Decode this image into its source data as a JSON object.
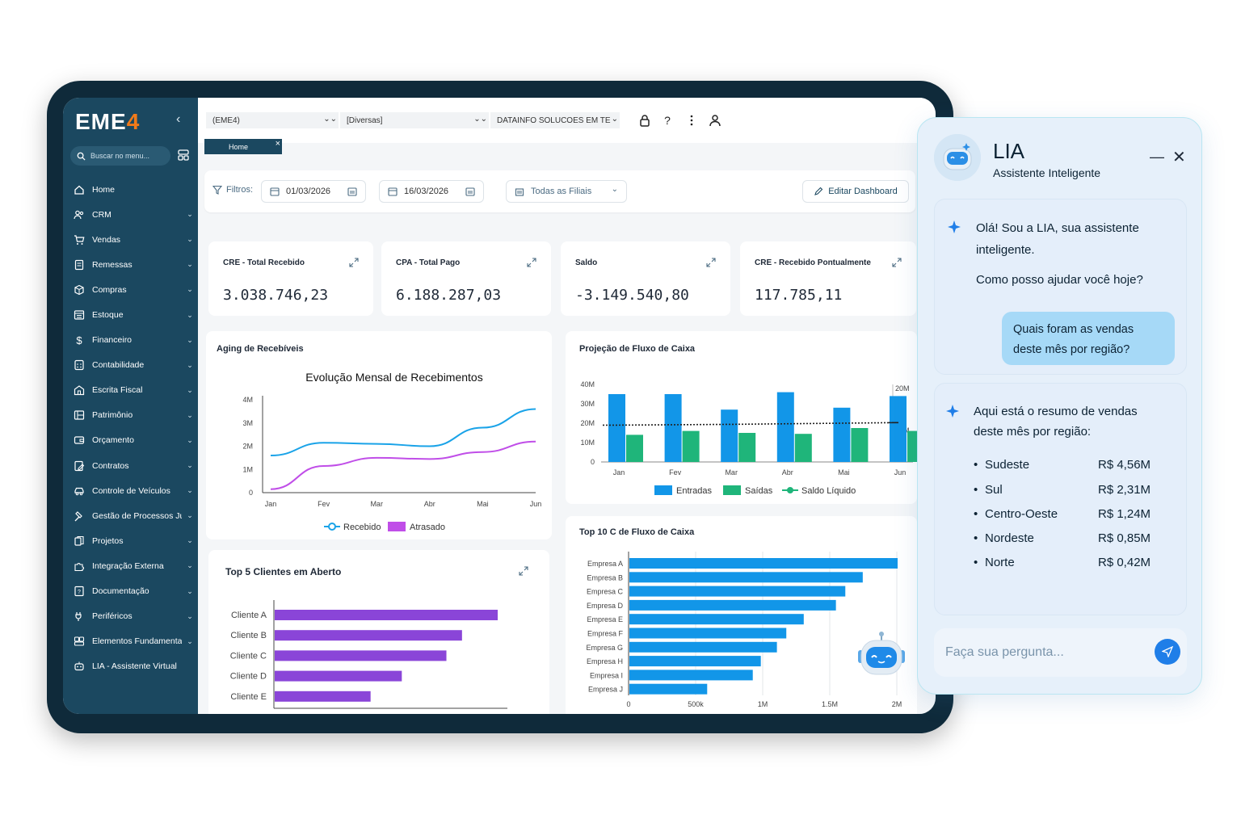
{
  "app": {
    "logo_main": "EME",
    "logo_accent": "4"
  },
  "sidebar": {
    "search_placeholder": "Buscar no menu...",
    "items": [
      {
        "label": "Home",
        "icon": "home-icon",
        "has_children": false
      },
      {
        "label": "CRM",
        "icon": "users-icon",
        "has_children": true
      },
      {
        "label": "Vendas",
        "icon": "cart-icon",
        "has_children": true
      },
      {
        "label": "Remessas",
        "icon": "document-icon",
        "has_children": true
      },
      {
        "label": "Compras",
        "icon": "box-icon",
        "has_children": true
      },
      {
        "label": "Estoque",
        "icon": "warehouse-icon",
        "has_children": true
      },
      {
        "label": "Financeiro",
        "icon": "dollar-icon",
        "has_children": true
      },
      {
        "label": "Contabilidade",
        "icon": "calculator-icon",
        "has_children": true
      },
      {
        "label": "Escrita Fiscal",
        "icon": "building-icon",
        "has_children": true
      },
      {
        "label": "Patrimônio",
        "icon": "assets-icon",
        "has_children": true
      },
      {
        "label": "Orçamento",
        "icon": "wallet-icon",
        "has_children": true
      },
      {
        "label": "Contratos",
        "icon": "contract-icon",
        "has_children": true
      },
      {
        "label": "Controle de Veículos",
        "icon": "car-icon",
        "has_children": true
      },
      {
        "label": "Gestão de Processos Ju...",
        "icon": "gavel-icon",
        "has_children": true
      },
      {
        "label": "Projetos",
        "icon": "projects-icon",
        "has_children": true
      },
      {
        "label": "Integração Externa",
        "icon": "puzzle-icon",
        "has_children": true
      },
      {
        "label": "Documentação",
        "icon": "docs-icon",
        "has_children": true
      },
      {
        "label": "Periféricos",
        "icon": "plug-icon",
        "has_children": true
      },
      {
        "label": "Elementos Fundamentais",
        "icon": "elements-icon",
        "has_children": true
      },
      {
        "label": "LIA - Assistente Virtual",
        "icon": "robot-icon",
        "has_children": false
      }
    ]
  },
  "topbar": {
    "company_select": "(EME4)",
    "group_select": "[Diversas]",
    "branch_select": "DATAINFO SOLUCOES EM TE",
    "tab_label": "Home",
    "tab_close": "×"
  },
  "filters": {
    "label": "Filtros:",
    "date_start": "01/03/2026",
    "date_end": "16/03/2026",
    "branch": "Todas as Filiais",
    "edit_button": "Editar Dashboard"
  },
  "kpis": [
    {
      "title": "CRE - Total Recebido",
      "value": "3.038.746,23"
    },
    {
      "title": "CPA - Total Pago",
      "value": "6.188.287,03"
    },
    {
      "title": "Saldo",
      "value": "-3.149.540,80"
    },
    {
      "title": "CRE - Recebido Pontualmente",
      "value": "117.785,11"
    }
  ],
  "cards": {
    "aging_title": "Aging de Recebíveis",
    "cashflow_title": "Projeção de Fluxo de Caixa",
    "top5_title": "Top 5 Clientes em Aberto",
    "top10_title": "Top 10 C de Fluxo de Caixa"
  },
  "colors": {
    "sidebar": "#1b4860",
    "accent": "#f07a1a",
    "recebido": "#1aa3e8",
    "atrasado": "#c04ee8",
    "entradas": "#1296e8",
    "saidas": "#1fb57a",
    "clientes": "#8a45d8",
    "empresas": "#1296e8"
  },
  "chart_data": [
    {
      "type": "line",
      "title": "Evolução Mensal de Recebimentos",
      "categories": [
        "Jan",
        "Fev",
        "Mar",
        "Abr",
        "Mai",
        "Jun"
      ],
      "ylim": [
        0,
        4000000
      ],
      "yticks": [
        "0",
        "1M",
        "2M",
        "3M",
        "4M"
      ],
      "series": [
        {
          "name": "Recebido",
          "values": [
            1600000,
            2150000,
            2100000,
            2000000,
            2800000,
            3600000
          ]
        },
        {
          "name": "Atrasado",
          "values": [
            150000,
            1150000,
            1500000,
            1450000,
            1750000,
            2200000
          ]
        }
      ]
    },
    {
      "type": "bar",
      "categories": [
        "Jan",
        "Fev",
        "Mar",
        "Abr",
        "Mai",
        "Jun"
      ],
      "ylim": [
        0,
        40000000
      ],
      "yticks": [
        "0",
        "10M",
        "20M",
        "30M",
        "40M"
      ],
      "y2ticks": [
        "20M",
        "10M"
      ],
      "series": [
        {
          "name": "Entradas",
          "values": [
            35000000,
            35000000,
            27000000,
            36000000,
            28000000,
            34000000
          ]
        },
        {
          "name": "Saídas",
          "values": [
            14000000,
            16000000,
            15000000,
            14500000,
            17500000,
            16000000
          ]
        },
        {
          "name": "Saldo Líquido",
          "values": [
            19000000,
            19200000,
            19400000,
            19700000,
            20000000,
            20300000
          ]
        }
      ]
    },
    {
      "type": "bar",
      "orientation": "horizontal",
      "categories": [
        "Cliente A",
        "Cliente B",
        "Cliente C",
        "Cliente D",
        "Cliente E"
      ],
      "values": [
        100,
        84,
        77,
        57,
        43
      ]
    },
    {
      "type": "bar",
      "orientation": "horizontal",
      "categories": [
        "Empresa A",
        "Empresa B",
        "Empresa C",
        "Empresa D",
        "Empresa E",
        "Empresa F",
        "Empresa G",
        "Empresa H",
        "Empresa I",
        "Empresa J"
      ],
      "xticks": [
        "0",
        "500k",
        "1M",
        "1.5M",
        "2M"
      ],
      "xlim": [
        0,
        2000000
      ],
      "values": [
        2000000,
        1740000,
        1610000,
        1540000,
        1300000,
        1170000,
        1100000,
        980000,
        920000,
        580000
      ]
    }
  ],
  "lia": {
    "name": "LIA",
    "subtitle": "Assistente Inteligente",
    "minimize": "—",
    "close": "✕",
    "greeting": "Olá! Sou a LIA, sua assistente inteligente.",
    "help": "Como posso ajudar você hoje?",
    "user_message": "Quais foram as vendas deste mês por região?",
    "response_intro": "Aqui está o resumo de vendas deste mês por região:",
    "regions": [
      {
        "name": "Sudeste",
        "value": "R$ 4,56M"
      },
      {
        "name": "Sul",
        "value": "R$ 2,31M"
      },
      {
        "name": "Centro-Oeste",
        "value": "R$ 1,24M"
      },
      {
        "name": "Nordeste",
        "value": "R$ 0,85M"
      },
      {
        "name": "Norte",
        "value": "R$ 0,42M"
      }
    ],
    "input_placeholder": "Faça sua pergunta..."
  }
}
